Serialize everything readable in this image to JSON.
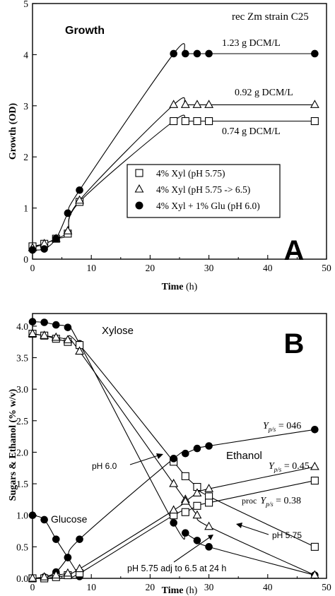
{
  "chart_data": [
    {
      "type": "line",
      "panel_letter": "A",
      "title": "Growth",
      "corner_text": "rec Zm strain C25",
      "xlabel_main": "Time",
      "xlabel_unit": " (h)",
      "ylabel": "Growth (OD)",
      "xlim": [
        0,
        50
      ],
      "ylim": [
        0,
        5
      ],
      "x_ticks": [
        "0",
        "10",
        "20",
        "30",
        "40",
        "50"
      ],
      "y_ticks": [
        "0",
        "1",
        "2",
        "3",
        "4",
        "5"
      ],
      "grid": false,
      "legend_position": "center-right",
      "series": [
        {
          "name": "4% Xyl (pH 5.75)",
          "marker": "square-open",
          "x": [
            0,
            2,
            4,
            6,
            8,
            24,
            26,
            28,
            30,
            48
          ],
          "y": [
            0.25,
            0.3,
            0.4,
            0.5,
            1.12,
            2.7,
            2.7,
            2.7,
            2.7,
            2.7
          ]
        },
        {
          "name": "4% Xyl (pH 5.75 -> 6.5)",
          "marker": "triangle-open",
          "x": [
            0,
            2,
            4,
            6,
            8,
            24,
            26,
            28,
            30,
            48
          ],
          "y": [
            0.22,
            0.3,
            0.4,
            0.55,
            1.15,
            3.02,
            3.02,
            3.02,
            3.02,
            3.02
          ]
        },
        {
          "name": "4% Xyl + 1% Glu (pH 6.0)",
          "marker": "circle-filled",
          "x": [
            0,
            2,
            4,
            6,
            8,
            24,
            26,
            28,
            30,
            48
          ],
          "y": [
            0.18,
            0.2,
            0.4,
            0.9,
            1.35,
            4.02,
            4.02,
            4.02,
            4.02,
            4.02
          ]
        }
      ],
      "annotations": [
        {
          "text": "1.23 g DCM/L",
          "near_series": "4% Xyl + 1% Glu (pH 6.0)"
        },
        {
          "text": "0.92 g DCM/L",
          "near_series": "4% Xyl (pH 5.75 -> 6.5)"
        },
        {
          "text": "0.74 g DCM/L",
          "near_series": "4% Xyl (pH 5.75)"
        }
      ]
    },
    {
      "type": "line",
      "panel_letter": "B",
      "xlabel_main": "Time",
      "xlabel_unit": " (h)",
      "ylabel": "Sugars & Ethanol (% w/v)",
      "xlim": [
        0,
        50
      ],
      "ylim": [
        0,
        4.2
      ],
      "x_ticks": [
        "0",
        "10",
        "20",
        "30",
        "40",
        "50"
      ],
      "y_ticks": [
        "0.0",
        "0.5",
        "1.0",
        "1.5",
        "2.0",
        "2.5",
        "3.0",
        "3.5",
        "4.0"
      ],
      "grid": false,
      "series": [
        {
          "marker": "circle-filled",
          "x": [
            0,
            2,
            4,
            6,
            8,
            24,
            26,
            28,
            30,
            48
          ],
          "y": [
            4.07,
            4.06,
            4.02,
            3.98,
            3.72,
            0.88,
            0.72,
            0.6,
            0.5,
            0.05
          ]
        },
        {
          "marker": "square-open",
          "x": [
            0,
            2,
            4,
            6,
            8,
            24,
            26,
            28,
            30,
            48
          ],
          "y": [
            3.88,
            3.85,
            3.8,
            3.75,
            3.7,
            1.85,
            1.62,
            1.45,
            1.3,
            0.5
          ]
        },
        {
          "marker": "triangle-open",
          "x": [
            0,
            2,
            4,
            6,
            8,
            24,
            26,
            28,
            30,
            48
          ],
          "y": [
            3.88,
            3.85,
            3.82,
            3.78,
            3.6,
            1.5,
            1.25,
            1.0,
            0.82,
            0.05
          ]
        },
        {
          "marker": "circle-filled",
          "x": [
            0,
            2,
            4,
            6,
            8
          ],
          "y": [
            1.0,
            0.93,
            0.62,
            0.33,
            0.03
          ]
        },
        {
          "marker": "circle-filled",
          "x": [
            0,
            2,
            4,
            6,
            8,
            24,
            26,
            28,
            30,
            48
          ],
          "y": [
            0.0,
            0.02,
            0.1,
            0.33,
            0.62,
            1.9,
            1.98,
            2.06,
            2.1,
            2.36
          ]
        },
        {
          "marker": "square-open",
          "x": [
            0,
            2,
            4,
            6,
            8,
            24,
            26,
            28,
            30,
            48
          ],
          "y": [
            0.0,
            0.0,
            0.02,
            0.05,
            0.08,
            1.0,
            1.05,
            1.15,
            1.2,
            1.55
          ]
        },
        {
          "marker": "triangle-open",
          "x": [
            0,
            2,
            4,
            6,
            8,
            24,
            26,
            28,
            30,
            48
          ],
          "y": [
            0.0,
            0.02,
            0.05,
            0.08,
            0.15,
            1.08,
            1.22,
            1.35,
            1.42,
            1.77
          ]
        }
      ],
      "annotations": {
        "xylose": "Xylose",
        "glucose": "Glucose",
        "ethanol": "Ethanol",
        "ph60": "pH 6.0",
        "ph575": "pH 5.75",
        "ph_adj": "pH 5.75 adj to 6.5 at 24 h",
        "yield_symbol": "Y",
        "yield_subscript": "p/s",
        "yield_1": " = 046",
        "yield_2": " = 0.45",
        "yield_3_prefix": "proc",
        "yield_3": " = 0.38"
      }
    }
  ]
}
